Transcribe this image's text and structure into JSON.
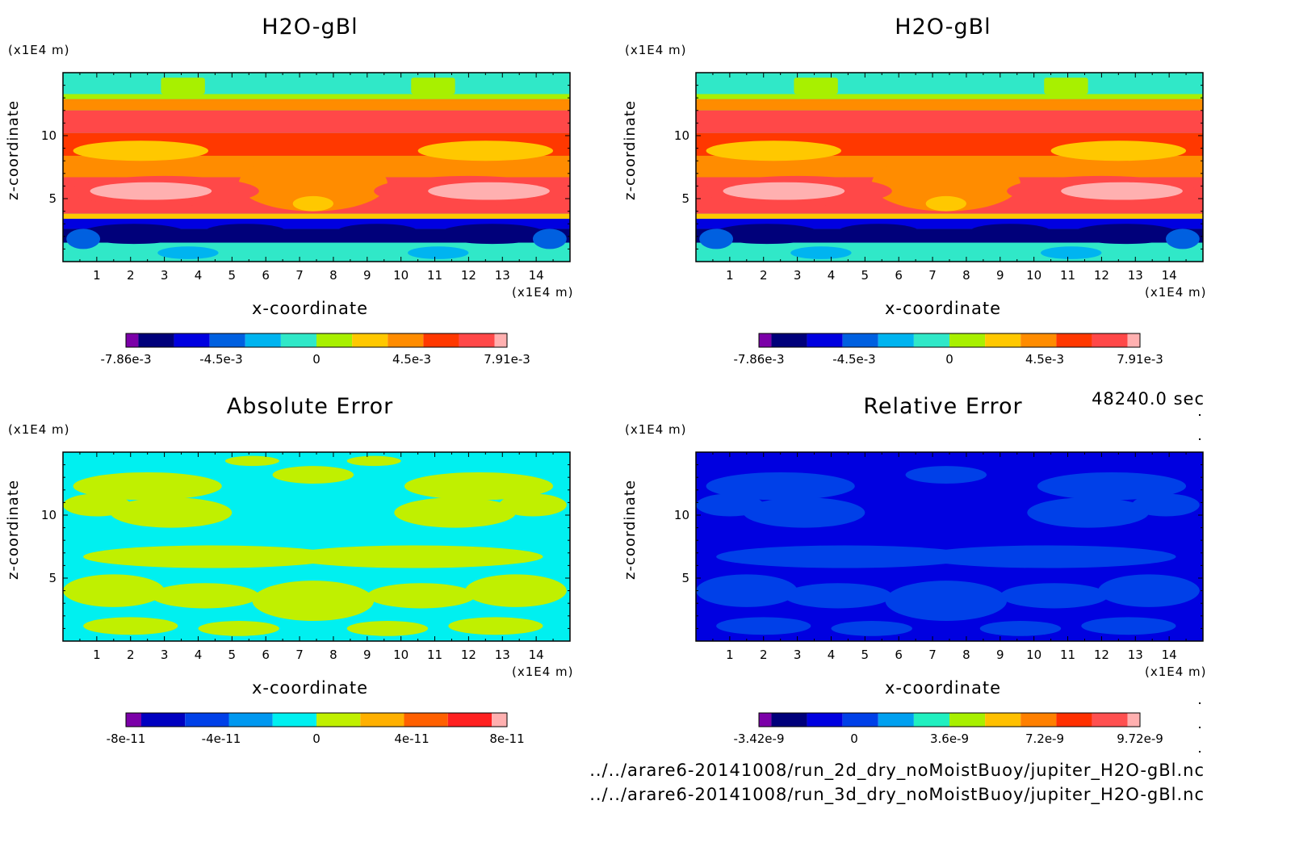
{
  "figure": {
    "time_label": "48240.0 sec",
    "file_lines": [
      "../../arare6-20141008/run_2d_dry_noMoistBuoy/jupiter_H2O-gBl.nc",
      "../../arare6-20141008/run_3d_dry_noMoistBuoy/jupiter_H2O-gBl.nc"
    ]
  },
  "chart_data": [
    {
      "type": "heatmap",
      "title": "H2O-gBl",
      "xlabel": "x-coordinate",
      "ylabel": "z-coordinate",
      "x_unit": "(x1E4 m)",
      "y_unit": "(x1E4 m)",
      "xlim": [
        0,
        15
      ],
      "ylim": [
        0,
        15
      ],
      "x_ticks": [
        "1",
        "2",
        "3",
        "4",
        "5",
        "6",
        "7",
        "8",
        "9",
        "10",
        "11",
        "12",
        "13",
        "14"
      ],
      "y_ticks": [
        "5",
        "10"
      ],
      "colorbar": {
        "colors": [
          "#7b00a8",
          "#00007a",
          "#0000e0",
          "#0060e0",
          "#00b4f0",
          "#30e8c8",
          "#a8f000",
          "#ffc800",
          "#ff8c00",
          "#ff3800",
          "#ff4848",
          "#ffb0b0"
        ],
        "labels": [
          "-7.86e-3",
          "-4.5e-3",
          "0",
          "4.5e-3",
          "7.91e-3"
        ]
      }
    },
    {
      "type": "heatmap",
      "title": "H2O-gBl",
      "xlabel": "x-coordinate",
      "ylabel": "z-coordinate",
      "x_unit": "(x1E4 m)",
      "y_unit": "(x1E4 m)",
      "xlim": [
        0,
        15
      ],
      "ylim": [
        0,
        15
      ],
      "x_ticks": [
        "1",
        "2",
        "3",
        "4",
        "5",
        "6",
        "7",
        "8",
        "9",
        "10",
        "11",
        "12",
        "13",
        "14"
      ],
      "y_ticks": [
        "5",
        "10"
      ],
      "colorbar": {
        "colors": [
          "#7b00a8",
          "#00007a",
          "#0000e0",
          "#0060e0",
          "#00b4f0",
          "#30e8c8",
          "#a8f000",
          "#ffc800",
          "#ff8c00",
          "#ff3800",
          "#ff4848",
          "#ffb0b0"
        ],
        "labels": [
          "-7.86e-3",
          "-4.5e-3",
          "0",
          "4.5e-3",
          "7.91e-3"
        ]
      }
    },
    {
      "type": "heatmap",
      "title": "Absolute Error",
      "xlabel": "x-coordinate",
      "ylabel": "z-coordinate",
      "x_unit": "(x1E4 m)",
      "y_unit": "(x1E4 m)",
      "xlim": [
        0,
        15
      ],
      "ylim": [
        0,
        15
      ],
      "x_ticks": [
        "1",
        "2",
        "3",
        "4",
        "5",
        "6",
        "7",
        "8",
        "9",
        "10",
        "11",
        "12",
        "13",
        "14"
      ],
      "y_ticks": [
        "5",
        "10"
      ],
      "colorbar": {
        "colors": [
          "#7b00a8",
          "#0000c0",
          "#0040e8",
          "#0098f0",
          "#00f0f0",
          "#c0f000",
          "#ffb000",
          "#ff6000",
          "#ff2020",
          "#ffb0b0"
        ],
        "labels": [
          "-8e-11",
          "-4e-11",
          "0",
          "4e-11",
          "8e-11"
        ]
      }
    },
    {
      "type": "heatmap",
      "title": "Relative Error",
      "xlabel": "x-coordinate",
      "ylabel": "z-coordinate",
      "x_unit": "(x1E4 m)",
      "y_unit": "(x1E4 m)",
      "xlim": [
        0,
        15
      ],
      "ylim": [
        0,
        15
      ],
      "x_ticks": [
        "1",
        "2",
        "3",
        "4",
        "5",
        "6",
        "7",
        "8",
        "9",
        "10",
        "11",
        "12",
        "13",
        "14"
      ],
      "y_ticks": [
        "5",
        "10"
      ],
      "colorbar": {
        "colors": [
          "#7b00a8",
          "#00007a",
          "#0000e0",
          "#0040e8",
          "#00a0f0",
          "#20f0c0",
          "#a8f000",
          "#ffc000",
          "#ff8000",
          "#ff3000",
          "#ff5050",
          "#ffb0b0"
        ],
        "labels": [
          "-3.42e-9",
          "0",
          "3.6e-9",
          "7.2e-9",
          "9.72e-9"
        ]
      }
    }
  ]
}
